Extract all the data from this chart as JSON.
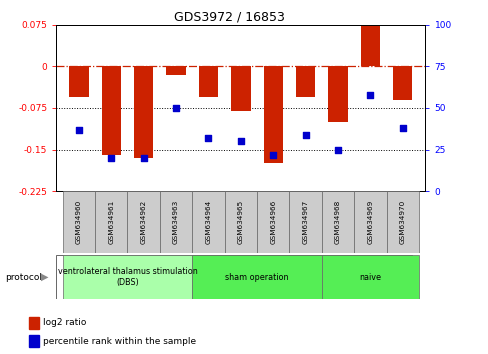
{
  "title": "GDS3972 / 16853",
  "samples": [
    "GSM634960",
    "GSM634961",
    "GSM634962",
    "GSM634963",
    "GSM634964",
    "GSM634965",
    "GSM634966",
    "GSM634967",
    "GSM634968",
    "GSM634969",
    "GSM634970"
  ],
  "log2_ratio": [
    -0.055,
    -0.16,
    -0.165,
    -0.015,
    -0.055,
    -0.08,
    -0.175,
    -0.055,
    -0.1,
    0.075,
    -0.06
  ],
  "percentile_rank": [
    37,
    20,
    20,
    50,
    32,
    30,
    22,
    34,
    25,
    58,
    38
  ],
  "groups": [
    {
      "label": "ventrolateral thalamus stimulation\n(DBS)",
      "start": 0,
      "end": 3,
      "color": "#aaffaa"
    },
    {
      "label": "sham operation",
      "start": 4,
      "end": 7,
      "color": "#55ee55"
    },
    {
      "label": "naive",
      "start": 8,
      "end": 10,
      "color": "#55ee55"
    }
  ],
  "ylim_left": [
    -0.225,
    0.075
  ],
  "ylim_right": [
    0,
    100
  ],
  "bar_color": "#CC2200",
  "dot_color": "#0000CC",
  "hline_color": "#CC2200",
  "dotted_line_color": "#000000",
  "background_color": "#ffffff",
  "protocol_label": "protocol",
  "legend_log2": "log2 ratio",
  "legend_pct": "percentile rank within the sample",
  "left_ticks": [
    0.075,
    0,
    -0.075,
    -0.15,
    -0.225
  ],
  "right_ticks": [
    100,
    75,
    50,
    25,
    0
  ],
  "bar_width": 0.6
}
